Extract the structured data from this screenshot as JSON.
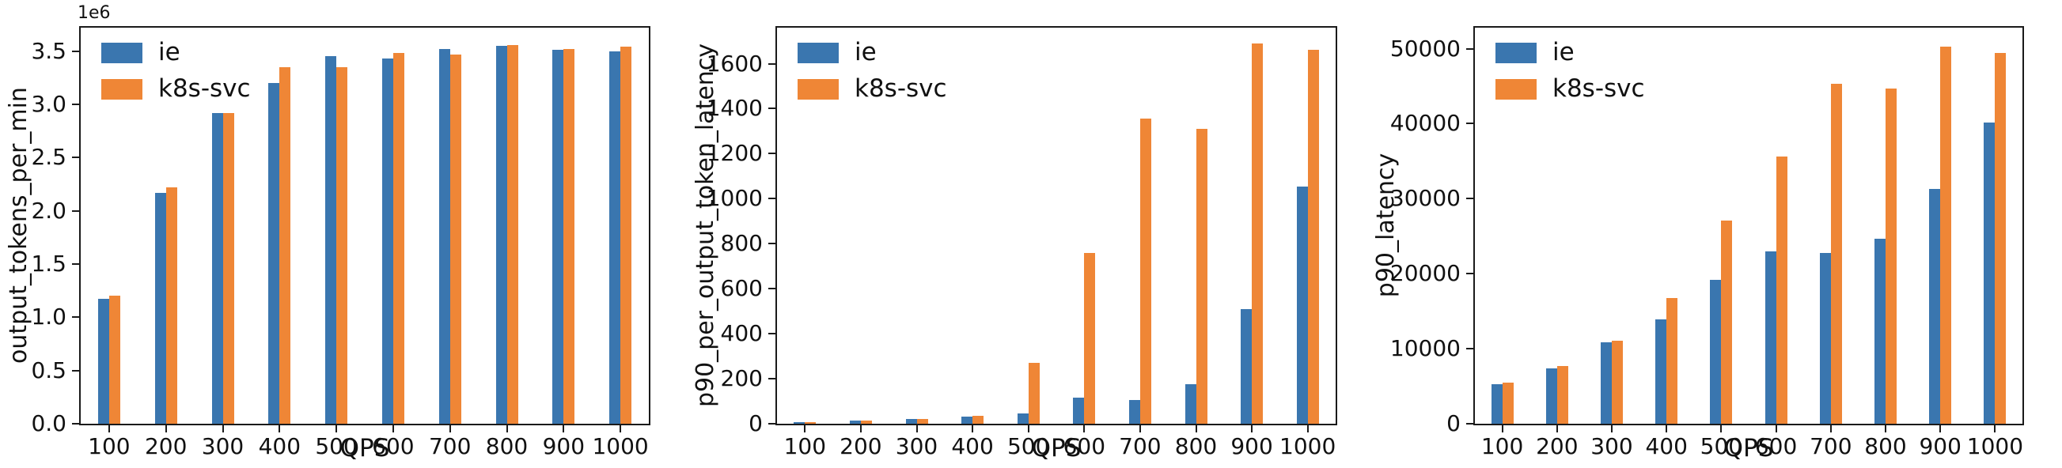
{
  "figure": {
    "background": "#ffffff",
    "axis_color": "#1a1a1a",
    "text_color": "#111111"
  },
  "colors": {
    "ie": "#3A76AF",
    "k8s_svc": "#EF8636"
  },
  "chart_data": [
    {
      "type": "bar",
      "title": "",
      "ylabel": "output_tokens_per_min",
      "xlabel": "QPS",
      "y_offset_label": "1e6",
      "grid": false,
      "legend_position": "upper-left",
      "categories": [
        "100",
        "200",
        "300",
        "400",
        "500",
        "600",
        "700",
        "800",
        "900",
        "1000"
      ],
      "ylim": [
        0,
        3720000
      ],
      "yticks": [
        {
          "value": 0,
          "label": "0.0"
        },
        {
          "value": 500000,
          "label": "0.5"
        },
        {
          "value": 1000000,
          "label": "1.0"
        },
        {
          "value": 1500000,
          "label": "1.5"
        },
        {
          "value": 2000000,
          "label": "2.0"
        },
        {
          "value": 2500000,
          "label": "2.5"
        },
        {
          "value": 3000000,
          "label": "3.0"
        },
        {
          "value": 3500000,
          "label": "3.5"
        }
      ],
      "series": [
        {
          "name": "ie",
          "color": "#3A76AF",
          "values": [
            1170000,
            2170000,
            2920000,
            3200000,
            3450000,
            3430000,
            3520000,
            3550000,
            3510000,
            3500000
          ]
        },
        {
          "name": "k8s-svc",
          "color": "#EF8636",
          "values": [
            1200000,
            2220000,
            2920000,
            3350000,
            3350000,
            3480000,
            3470000,
            3560000,
            3520000,
            3540000
          ]
        }
      ]
    },
    {
      "type": "bar",
      "title": "",
      "ylabel": "p90_per_output_token_latency",
      "xlabel": "QPS",
      "grid": false,
      "legend_position": "upper-left",
      "categories": [
        "100",
        "200",
        "300",
        "400",
        "500",
        "600",
        "700",
        "800",
        "900",
        "1000"
      ],
      "ylim": [
        0,
        1760
      ],
      "yticks": [
        {
          "value": 0,
          "label": "0"
        },
        {
          "value": 200,
          "label": "200"
        },
        {
          "value": 400,
          "label": "400"
        },
        {
          "value": 600,
          "label": "600"
        },
        {
          "value": 800,
          "label": "800"
        },
        {
          "value": 1000,
          "label": "1000"
        },
        {
          "value": 1200,
          "label": "1200"
        },
        {
          "value": 1400,
          "label": "1400"
        },
        {
          "value": 1600,
          "label": "1600"
        }
      ],
      "series": [
        {
          "name": "ie",
          "color": "#3A76AF",
          "values": [
            8,
            15,
            22,
            32,
            45,
            115,
            105,
            175,
            510,
            1055
          ]
        },
        {
          "name": "k8s-svc",
          "color": "#EF8636",
          "values": [
            8,
            15,
            22,
            35,
            270,
            760,
            1355,
            1310,
            1690,
            1660
          ]
        }
      ]
    },
    {
      "type": "bar",
      "title": "",
      "ylabel": "p90_latency",
      "xlabel": "QPS",
      "grid": false,
      "legend_position": "upper-left",
      "categories": [
        "100",
        "200",
        "300",
        "400",
        "500",
        "600",
        "700",
        "800",
        "900",
        "1000"
      ],
      "ylim": [
        0,
        52800
      ],
      "yticks": [
        {
          "value": 0,
          "label": "0"
        },
        {
          "value": 10000,
          "label": "10000"
        },
        {
          "value": 20000,
          "label": "20000"
        },
        {
          "value": 30000,
          "label": "30000"
        },
        {
          "value": 40000,
          "label": "40000"
        },
        {
          "value": 50000,
          "label": "50000"
        }
      ],
      "series": [
        {
          "name": "ie",
          "color": "#3A76AF",
          "values": [
            5300,
            7400,
            10900,
            13900,
            19200,
            23000,
            22800,
            24700,
            31300,
            40200
          ]
        },
        {
          "name": "k8s-svc",
          "color": "#EF8636",
          "values": [
            5500,
            7700,
            11100,
            16800,
            27100,
            35600,
            45300,
            44700,
            50300,
            49400
          ]
        }
      ]
    }
  ]
}
